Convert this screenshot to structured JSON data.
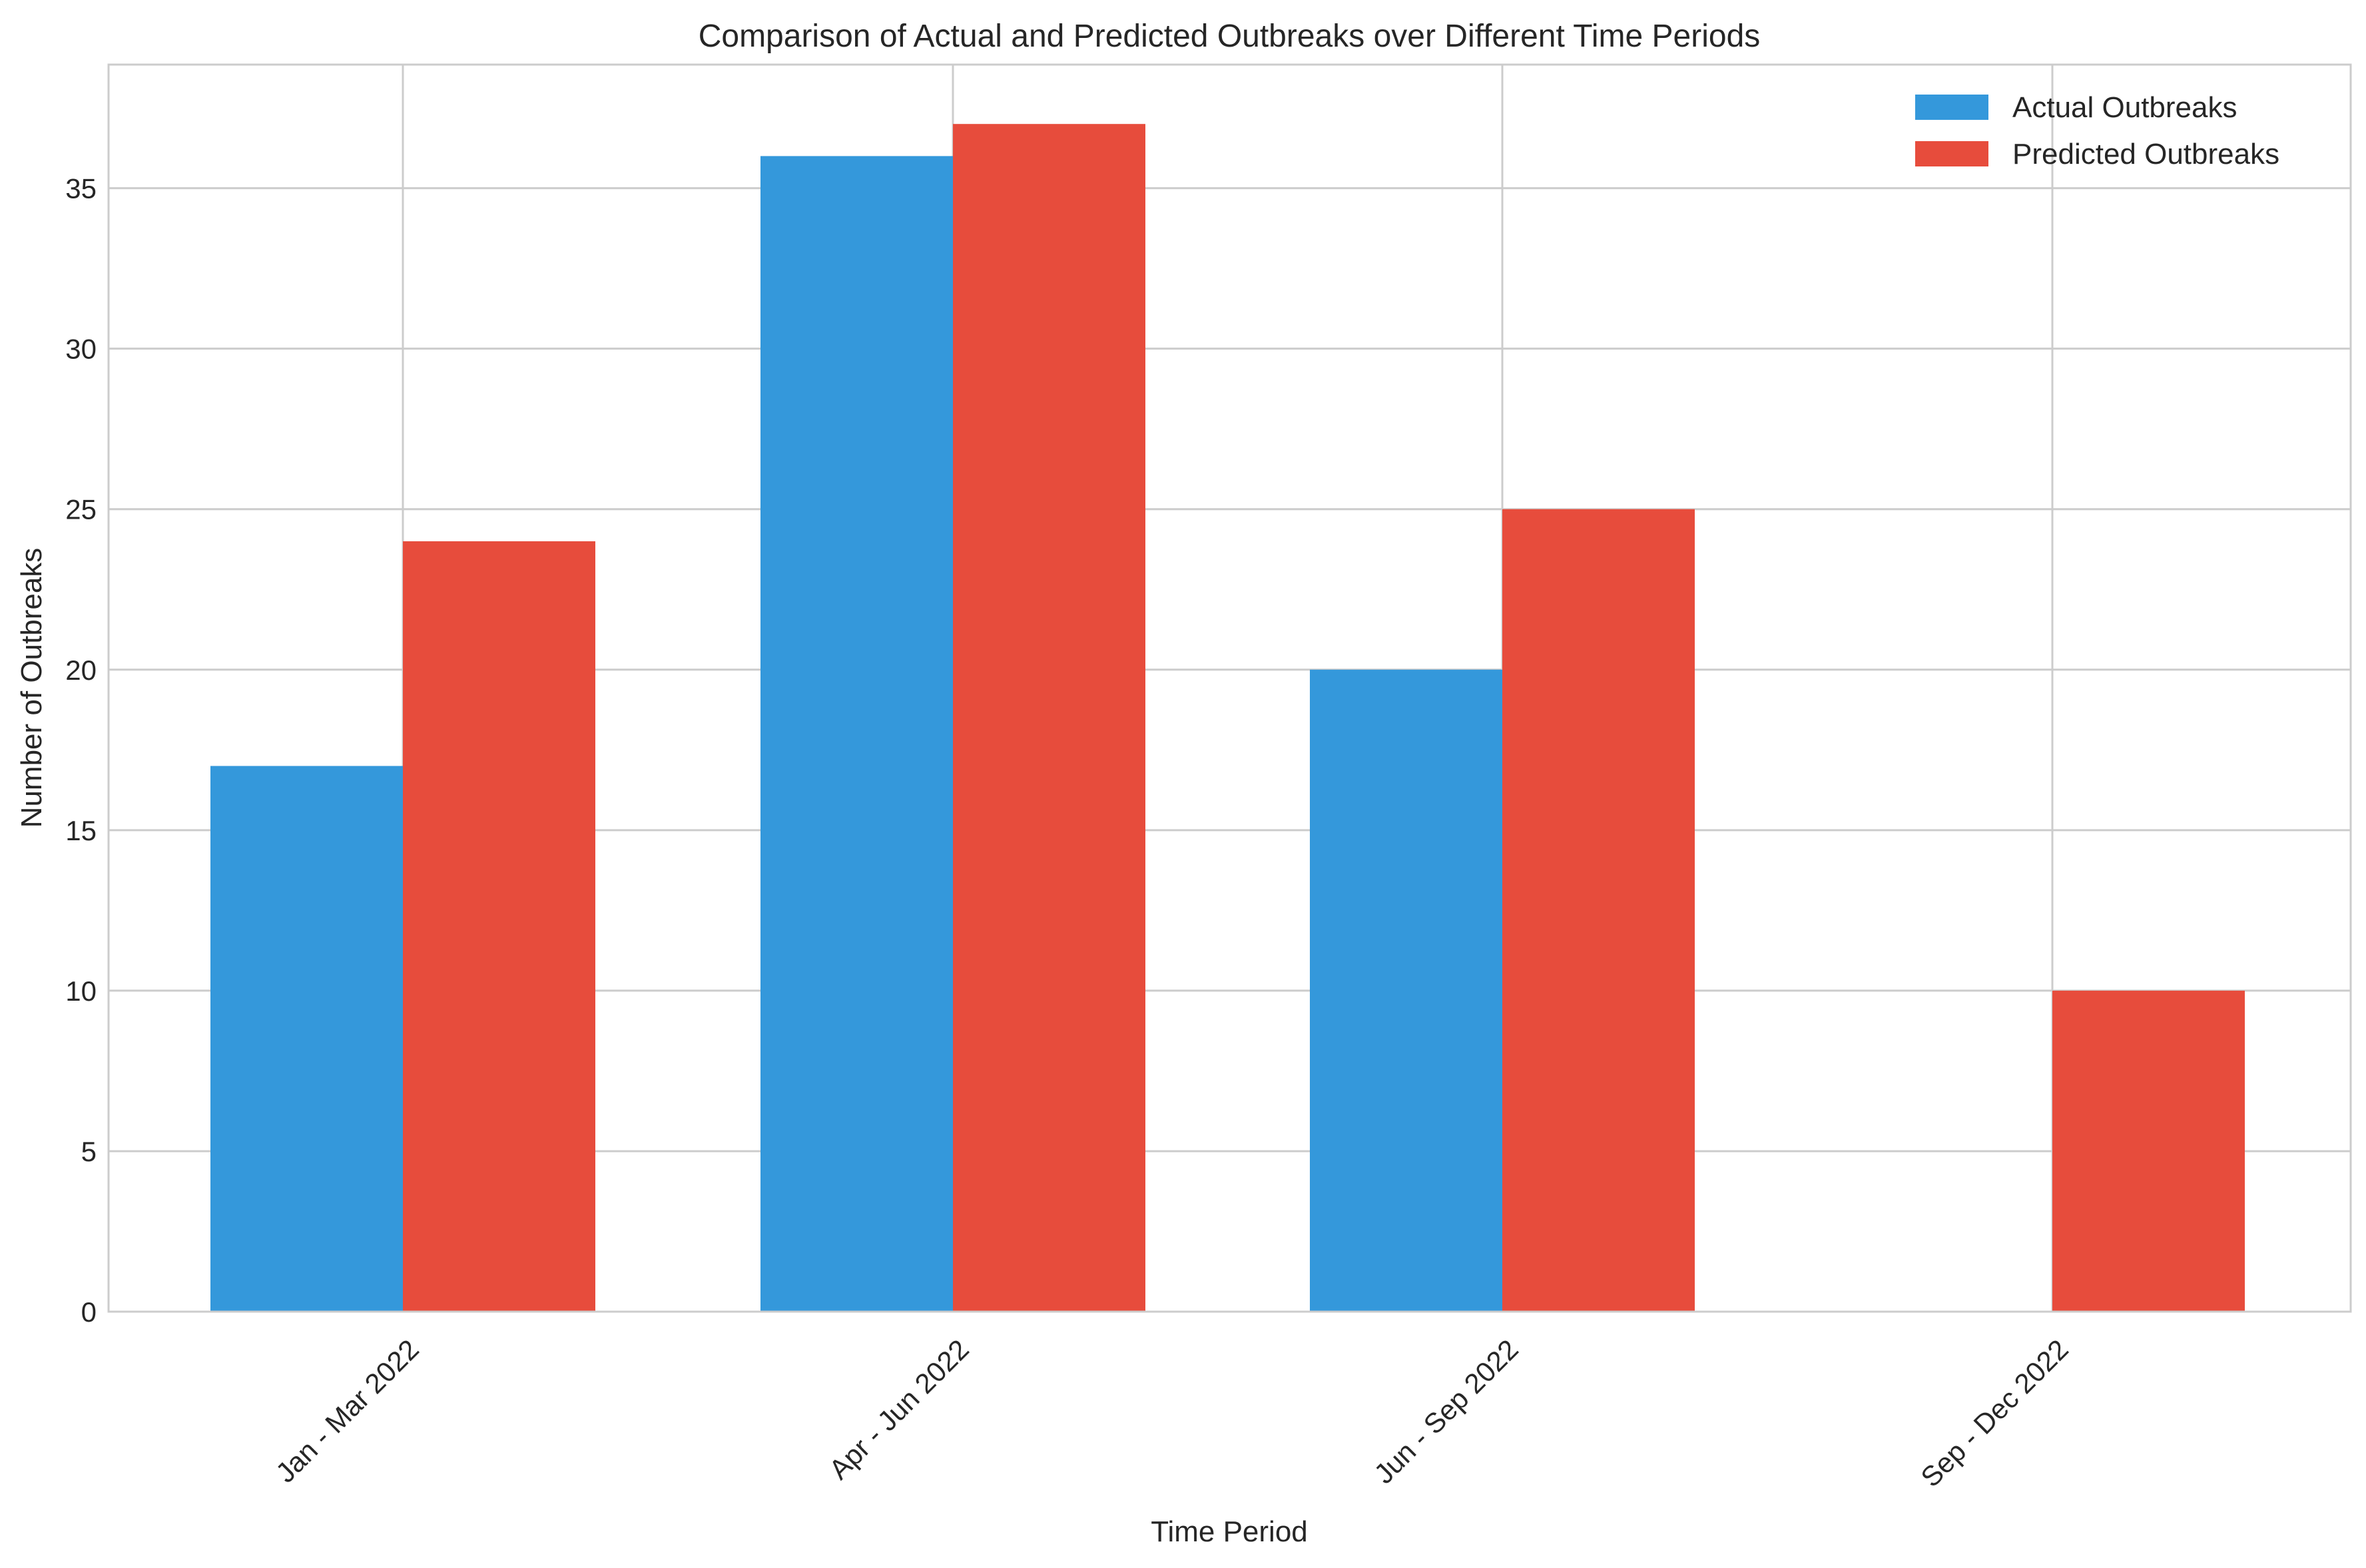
{
  "chart_data": {
    "type": "bar",
    "title": "Comparison of Actual and Predicted Outbreaks over Different Time Periods",
    "xlabel": "Time Period",
    "ylabel": "Number of Outbreaks",
    "categories": [
      "Jan - Mar 2022",
      "Apr - Jun 2022",
      "Jun - Sep 2022",
      "Sep - Dec 2022"
    ],
    "series": [
      {
        "name": "Actual Outbreaks",
        "values": [
          17,
          36,
          20,
          0
        ],
        "color": "#3498db"
      },
      {
        "name": "Predicted Outbreaks",
        "values": [
          24,
          37,
          25,
          10
        ],
        "color": "#e74c3c"
      }
    ],
    "ylim": [
      0,
      38.85
    ],
    "yticks": [
      0,
      5,
      10,
      15,
      20,
      25,
      30,
      35
    ],
    "grid": true,
    "legend_position": "top-right",
    "tick_label_rotation": 45
  }
}
